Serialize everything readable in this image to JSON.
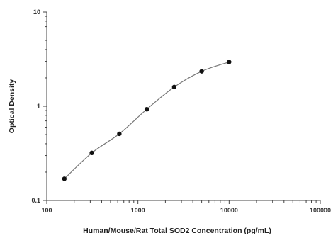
{
  "chart_data": {
    "type": "scatter",
    "xlabel": "Human/Mouse/Rat Total SOD2 Concentration (pg/mL)",
    "ylabel": "Optical Density",
    "xscale": "log",
    "yscale": "log",
    "xlim": [
      100,
      100000
    ],
    "ylim": [
      0.1,
      10
    ],
    "x_ticks": [
      "100",
      "1000",
      "10000",
      "100000"
    ],
    "y_ticks": [
      "0.1",
      "1",
      "10"
    ],
    "grid": false,
    "legend": "none",
    "fit_line": "smooth standard curve",
    "series": [
      {
        "points": [
          {
            "x": 156,
            "y": 0.17
          },
          {
            "x": 312,
            "y": 0.32
          },
          {
            "x": 625,
            "y": 0.51
          },
          {
            "x": 1250,
            "y": 0.93
          },
          {
            "x": 2500,
            "y": 1.6
          },
          {
            "x": 5000,
            "y": 2.35
          },
          {
            "x": 10000,
            "y": 2.95
          }
        ]
      }
    ],
    "colors": {
      "points": "#111111",
      "curve": "#777777",
      "axis": "#444444"
    }
  }
}
